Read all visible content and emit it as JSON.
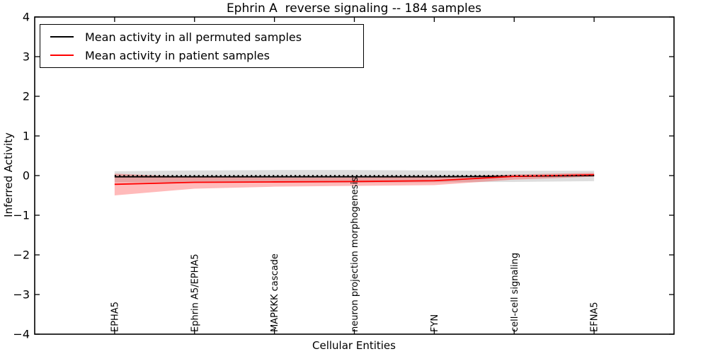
{
  "chart_data": {
    "type": "line",
    "title": "Ephrin A  reverse signaling -- 184 samples",
    "xlabel": "Cellular Entities",
    "ylabel": "Inferred Activity",
    "categories": [
      "EPHA5",
      "Ephrin A5/EPHA5",
      "MAPKKK cascade",
      "neuron projection morphogenesis",
      "FYN",
      "cell-cell signaling",
      "EFNA5"
    ],
    "x_positions": [
      1,
      2,
      3,
      4,
      5,
      6,
      7
    ],
    "xlim": [
      0,
      8
    ],
    "ylim": [
      -4,
      4
    ],
    "y_ticks": [
      -4,
      -3,
      -2,
      -1,
      0,
      1,
      2,
      3,
      4
    ],
    "grid": false,
    "legend_position": "upper left",
    "zero_reference_line": {
      "value": 0,
      "style": "dotted",
      "color": "#000000"
    },
    "series": [
      {
        "name": "Mean activity in all permuted samples",
        "color": "#000000",
        "band_color": "rgba(0,0,0,0.13)",
        "values": [
          -0.03,
          -0.03,
          -0.03,
          -0.03,
          -0.03,
          -0.02,
          0.0
        ],
        "band_upper": [
          0.11,
          0.13,
          0.14,
          0.14,
          0.13,
          0.12,
          0.12
        ],
        "band_lower": [
          -0.17,
          -0.17,
          -0.18,
          -0.18,
          -0.17,
          -0.16,
          -0.14
        ]
      },
      {
        "name": "Mean activity in patient samples",
        "color": "#ff0000",
        "band_color": "rgba(255,0,0,0.27)",
        "values": [
          -0.22,
          -0.17,
          -0.16,
          -0.15,
          -0.13,
          -0.02,
          0.02
        ],
        "band_upper": [
          0.05,
          -0.04,
          -0.05,
          -0.05,
          -0.04,
          0.03,
          0.07
        ],
        "band_lower": [
          -0.5,
          -0.33,
          -0.28,
          -0.26,
          -0.24,
          -0.1,
          -0.03
        ]
      }
    ]
  },
  "colors": {
    "background": "#ffffff",
    "axis": "#000000",
    "text": "#000000"
  }
}
